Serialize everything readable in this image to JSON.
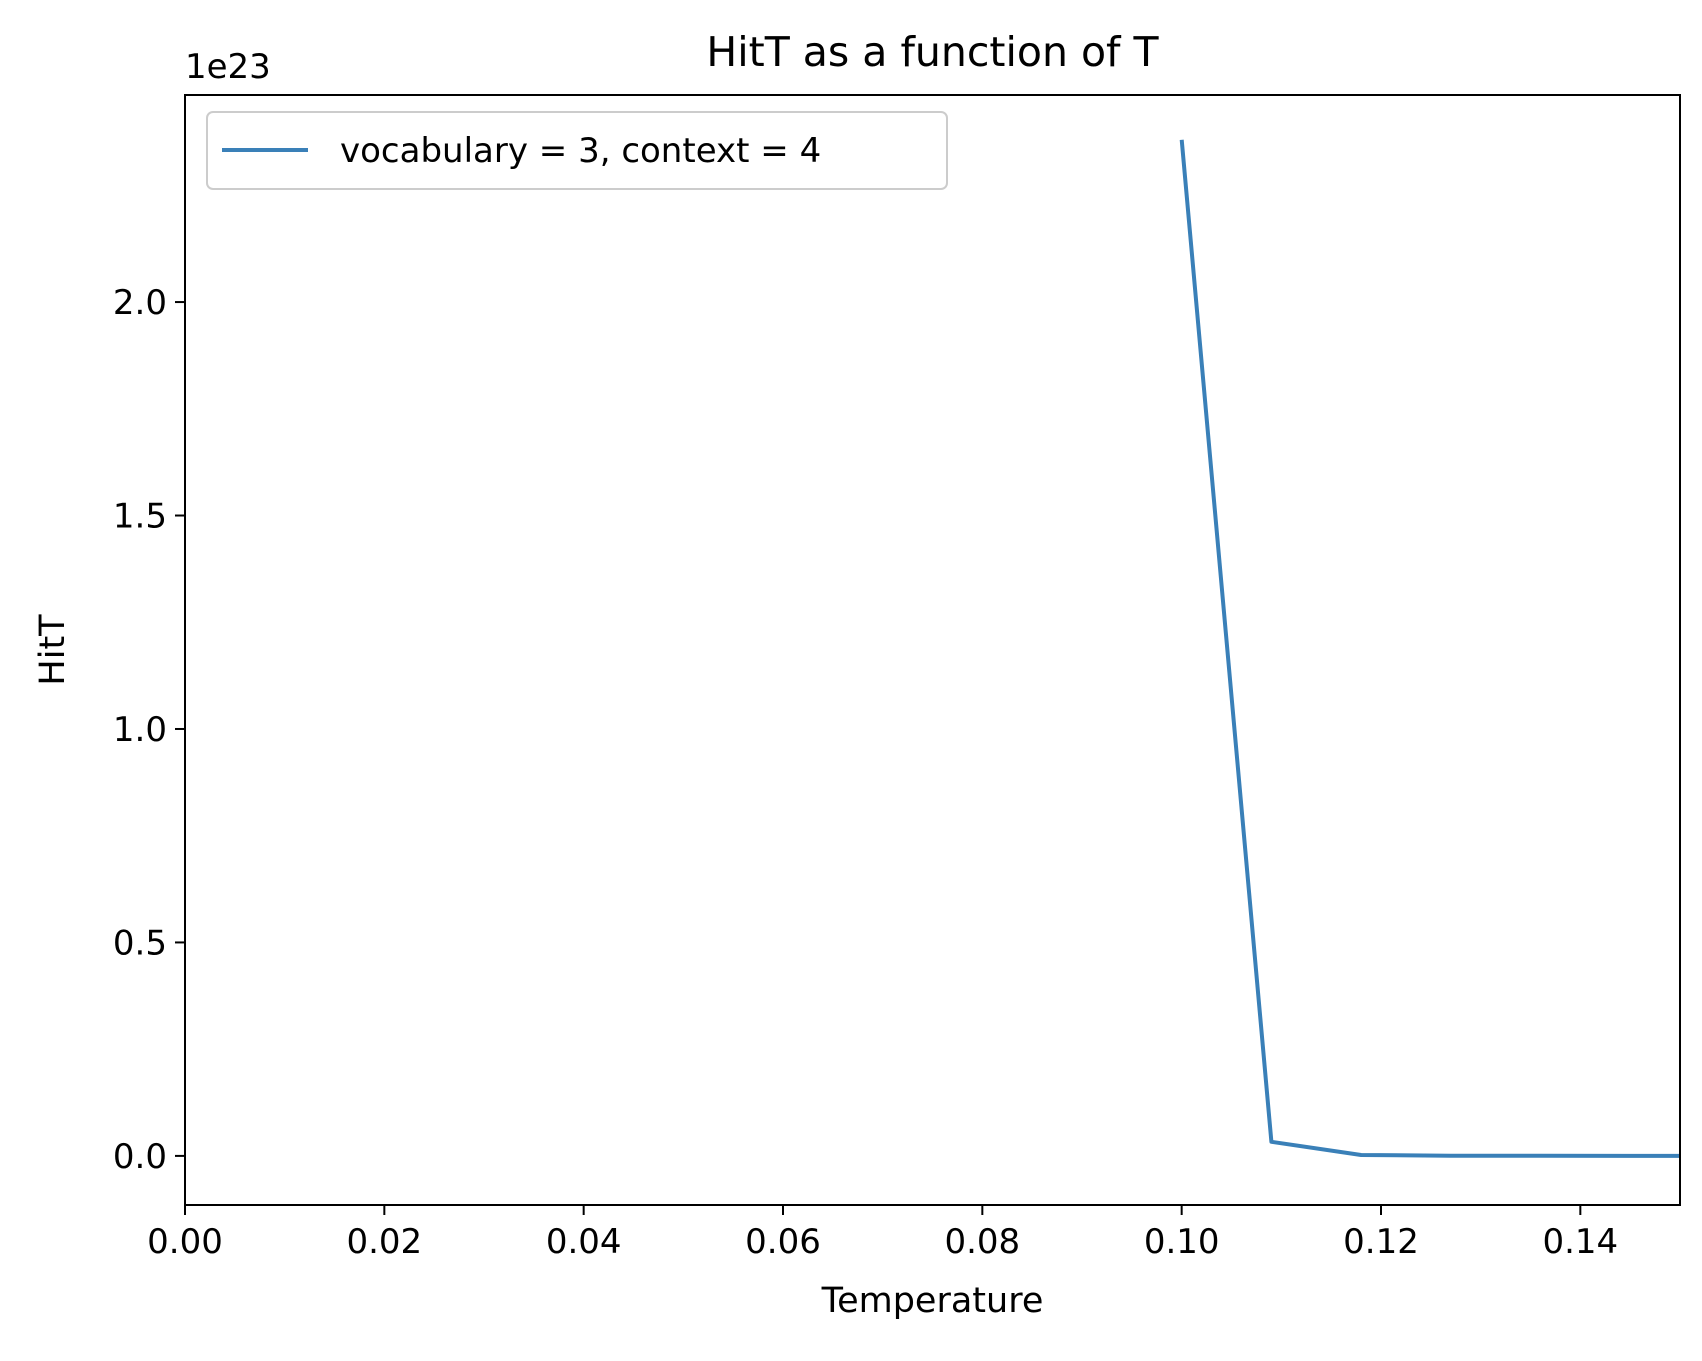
{
  "chart_data": {
    "type": "line",
    "title": "HitT as a function of T",
    "xlabel": "Temperature",
    "ylabel": "HitT",
    "y_offset_label": "1e23",
    "xlim": [
      0.0,
      0.15
    ],
    "ylim": [
      -0.115,
      2.485
    ],
    "x_ticks": [
      0.0,
      0.02,
      0.04,
      0.06,
      0.08,
      0.1,
      0.12,
      0.14
    ],
    "x_tick_labels": [
      "0.00",
      "0.02",
      "0.04",
      "0.06",
      "0.08",
      "0.10",
      "0.12",
      "0.14"
    ],
    "y_ticks": [
      0.0,
      0.5,
      1.0,
      1.5,
      2.0
    ],
    "y_tick_labels": [
      "0.0",
      "0.5",
      "1.0",
      "1.5",
      "2.0"
    ],
    "grid": false,
    "legend_position": "top-left",
    "series": [
      {
        "name": "vocabulary = 3, context = 4",
        "color": "#3a80b8",
        "x": [
          0.1,
          0.109,
          0.118,
          0.127,
          0.136,
          0.145,
          0.15
        ],
        "y": [
          2.38,
          0.033,
          0.002,
          0.0005,
          0.0002,
          0.0001,
          0.0
        ]
      }
    ]
  }
}
